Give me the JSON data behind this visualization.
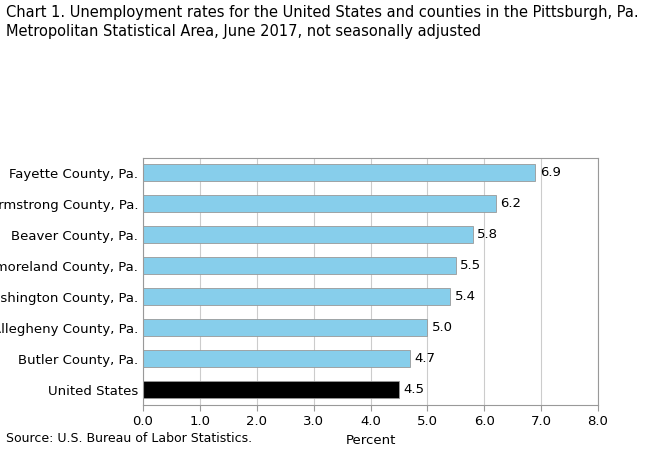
{
  "title_line1": "Chart 1. Unemployment rates for the United States and counties in the Pittsburgh, Pa.",
  "title_line2": "Metropolitan Statistical Area, June 2017, not seasonally adjusted",
  "categories": [
    "United States",
    "Butler County, Pa.",
    "Allegheny County, Pa.",
    "Washington County, Pa.",
    "Westmoreland County, Pa.",
    "Beaver County, Pa.",
    "Armstrong County, Pa.",
    "Fayette County, Pa."
  ],
  "values": [
    4.5,
    4.7,
    5.0,
    5.4,
    5.5,
    5.8,
    6.2,
    6.9
  ],
  "bar_colors": [
    "#000000",
    "#87CEEB",
    "#87CEEB",
    "#87CEEB",
    "#87CEEB",
    "#87CEEB",
    "#87CEEB",
    "#87CEEB"
  ],
  "xlabel": "Percent",
  "xlim": [
    0.0,
    8.0
  ],
  "xticks": [
    0.0,
    1.0,
    2.0,
    3.0,
    4.0,
    5.0,
    6.0,
    7.0,
    8.0
  ],
  "source": "Source: U.S. Bureau of Labor Statistics.",
  "title_fontsize": 10.5,
  "label_fontsize": 9.5,
  "tick_fontsize": 9.5,
  "source_fontsize": 9,
  "value_fontsize": 9.5,
  "grid_color": "#cccccc",
  "bar_edge_color": "#999999",
  "spine_color": "#999999",
  "light_blue": "#87CEEB",
  "bar_height": 0.55
}
